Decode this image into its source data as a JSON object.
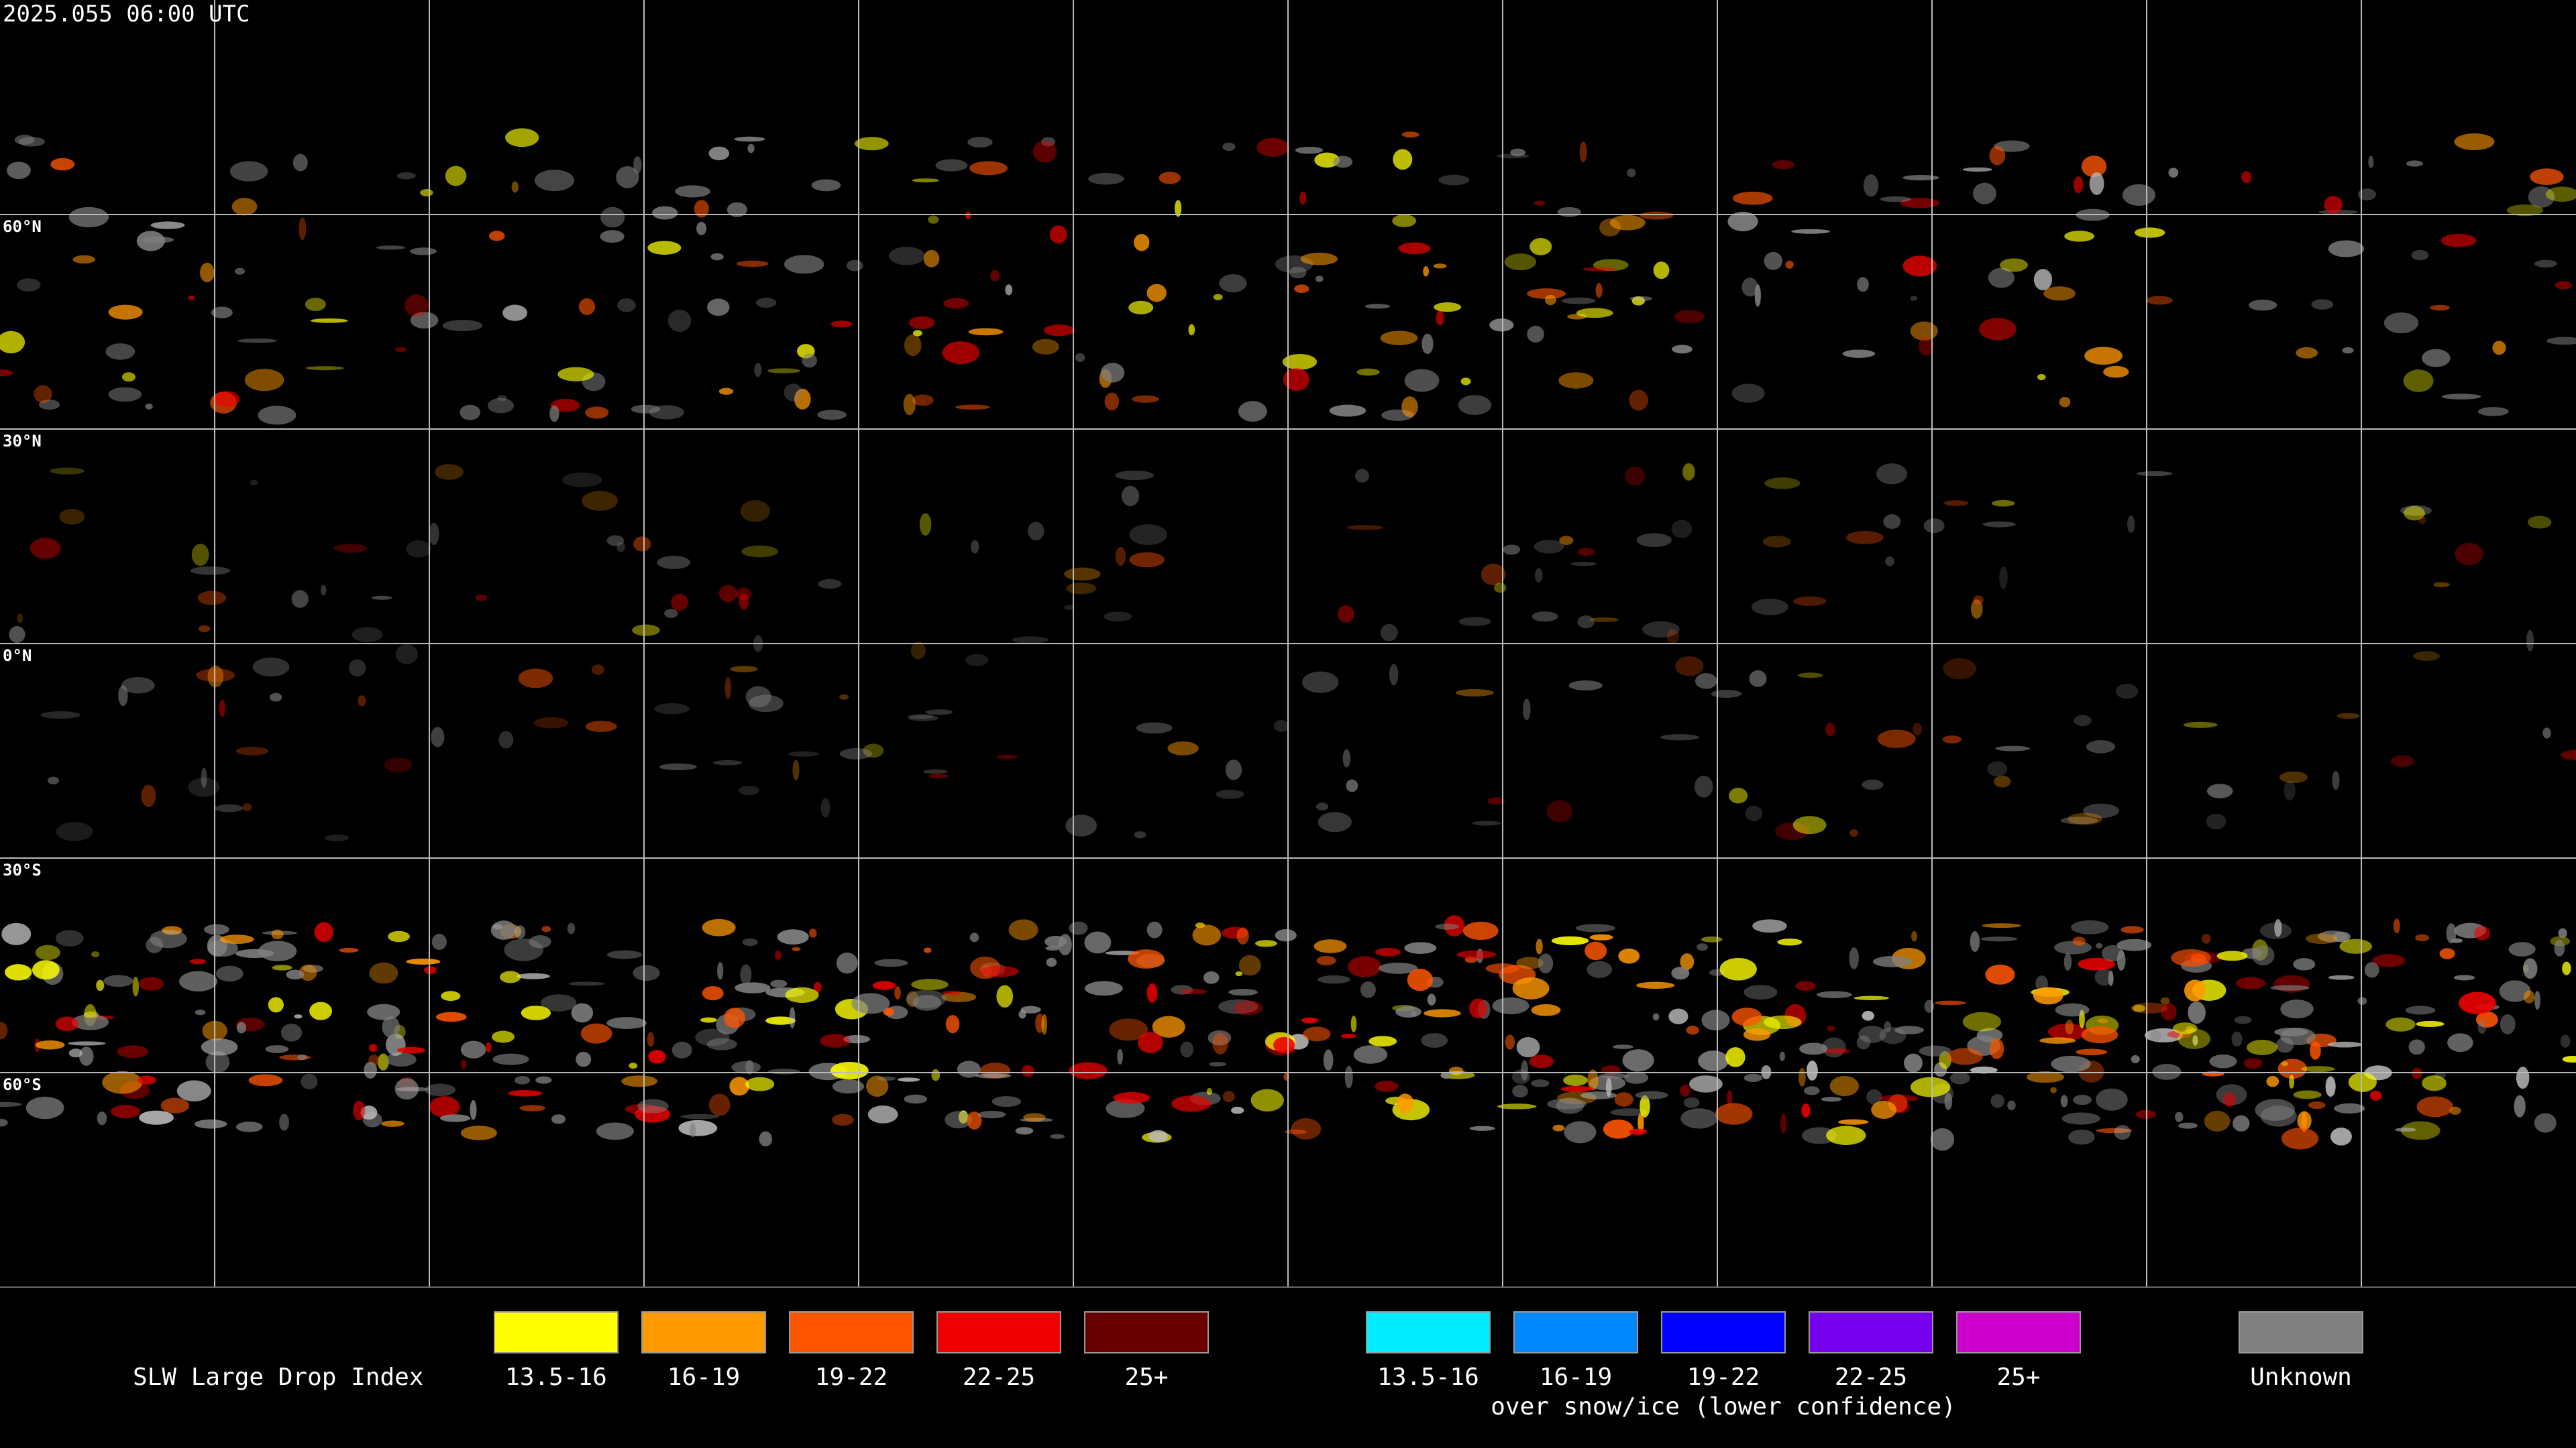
{
  "timestamp": "2025.055 06:00 UTC",
  "map": {
    "latitude_labels": [
      "60°N",
      "30°N",
      "0°N",
      "30°S",
      "60°S"
    ]
  },
  "legend": {
    "title": "SLW Large Drop Index",
    "groups": [
      {
        "items": [
          {
            "label": "13.5-16",
            "color": "#ffff00"
          },
          {
            "label": "16-19",
            "color": "#ff9900"
          },
          {
            "label": "19-22",
            "color": "#ff5500"
          },
          {
            "label": "22-25",
            "color": "#ee0000"
          },
          {
            "label": "25+",
            "color": "#660000"
          }
        ]
      },
      {
        "caption": "over snow/ice (lower confidence)",
        "items": [
          {
            "label": "13.5-16",
            "color": "#00eeff"
          },
          {
            "label": "16-19",
            "color": "#0088ff"
          },
          {
            "label": "19-22",
            "color": "#0000ff"
          },
          {
            "label": "22-25",
            "color": "#7700ee"
          },
          {
            "label": "25+",
            "color": "#cc00cc"
          }
        ]
      },
      {
        "items": [
          {
            "label": "Unknown",
            "color": "#808080"
          }
        ]
      }
    ]
  }
}
